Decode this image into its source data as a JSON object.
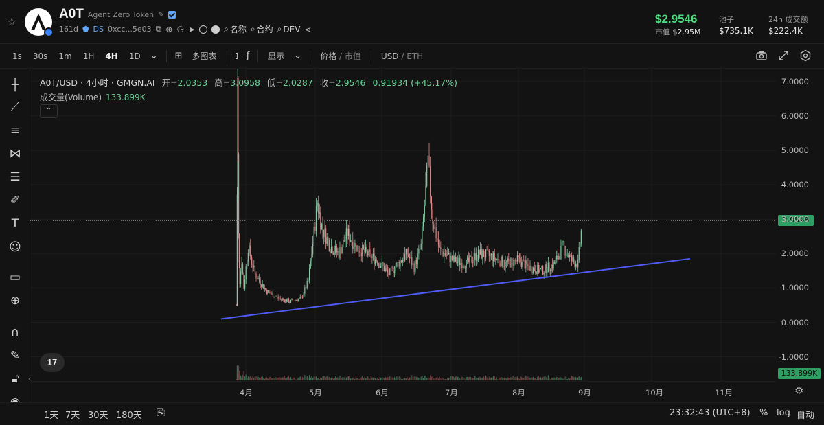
{
  "token": {
    "symbol": "A0T",
    "name": "Agent Zero Token",
    "age": "161d",
    "ds_label": "DS",
    "address": "0xcc...5e03",
    "links": {
      "name_search": "名称",
      "contract_search": "合约",
      "dev_search": "DEV"
    }
  },
  "stats": {
    "price": "$2.9546",
    "market_cap_label": "市值",
    "market_cap": "$2.95M",
    "pool_label": "池子",
    "pool": "$735.1K",
    "vol24_label": "24h 成交额",
    "vol24": "$222.4K"
  },
  "toolbar": {
    "intervals": [
      "1s",
      "30s",
      "1m",
      "1H",
      "4H",
      "1D"
    ],
    "active_interval": "4H",
    "multi_chart": "多图表",
    "display": "显示",
    "price_label": "价格",
    "mcap_label": "市值",
    "usd_label": "USD",
    "eth_label": "ETH"
  },
  "legend": {
    "pair": "A0T/USD · 4小时 · GMGN.AI",
    "open_label": "开=",
    "open": "2.0353",
    "high_label": "高=",
    "high": "3.0958",
    "low_label": "低=",
    "low": "2.0287",
    "close_label": "收=",
    "close": "2.9546",
    "change": "0.91934 (+45.17%)",
    "volume_label": "成交量(Volume)",
    "volume": "133.899K"
  },
  "chart_data": {
    "type": "candlestick",
    "y_ticks": [
      "7.0000",
      "6.0000",
      "5.0000",
      "4.0000",
      "3.0000",
      "2.0000",
      "1.0000",
      "0.0000",
      "-1.0000"
    ],
    "x_ticks": [
      "4月",
      "5月",
      "6月",
      "7月",
      "8月",
      "9月",
      "10月",
      "11月"
    ],
    "price_tag": "2.9546",
    "volume_tag": "133.899K",
    "ylim": [
      -1.5,
      7.2
    ],
    "trendline": {
      "start_value": 0.1,
      "end_value": 1.85
    },
    "price_series": [
      {
        "t": "03-23",
        "v": 0.5
      },
      {
        "t": "03-24",
        "v": 7.0
      },
      {
        "t": "03-25",
        "v": 2.5
      },
      {
        "t": "03-26",
        "v": 1.2
      },
      {
        "t": "03-28",
        "v": 1.8
      },
      {
        "t": "03-30",
        "v": 1.0
      },
      {
        "t": "04-02",
        "v": 2.2
      },
      {
        "t": "04-05",
        "v": 1.4
      },
      {
        "t": "04-10",
        "v": 0.9
      },
      {
        "t": "04-15",
        "v": 0.7
      },
      {
        "t": "04-20",
        "v": 0.6
      },
      {
        "t": "04-25",
        "v": 0.7
      },
      {
        "t": "04-28",
        "v": 1.2
      },
      {
        "t": "04-30",
        "v": 2.3
      },
      {
        "t": "05-02",
        "v": 3.5
      },
      {
        "t": "05-04",
        "v": 2.8
      },
      {
        "t": "05-08",
        "v": 2.2
      },
      {
        "t": "05-12",
        "v": 2.0
      },
      {
        "t": "05-16",
        "v": 2.6
      },
      {
        "t": "05-20",
        "v": 2.2
      },
      {
        "t": "05-25",
        "v": 2.0
      },
      {
        "t": "05-30",
        "v": 1.8
      },
      {
        "t": "06-04",
        "v": 1.4
      },
      {
        "t": "06-08",
        "v": 1.7
      },
      {
        "t": "06-12",
        "v": 2.0
      },
      {
        "t": "06-15",
        "v": 1.6
      },
      {
        "t": "06-18",
        "v": 2.2
      },
      {
        "t": "06-21",
        "v": 4.6
      },
      {
        "t": "06-23",
        "v": 3.0
      },
      {
        "t": "06-26",
        "v": 2.1
      },
      {
        "t": "07-02",
        "v": 1.8
      },
      {
        "t": "07-08",
        "v": 1.7
      },
      {
        "t": "07-14",
        "v": 2.0
      },
      {
        "t": "07-20",
        "v": 1.9
      },
      {
        "t": "07-26",
        "v": 1.7
      },
      {
        "t": "08-01",
        "v": 1.8
      },
      {
        "t": "08-06",
        "v": 1.6
      },
      {
        "t": "08-12",
        "v": 1.5
      },
      {
        "t": "08-18",
        "v": 1.7
      },
      {
        "t": "08-22",
        "v": 2.2
      },
      {
        "t": "08-26",
        "v": 1.8
      },
      {
        "t": "08-29",
        "v": 1.7
      },
      {
        "t": "08-31",
        "v": 2.95
      }
    ]
  },
  "footer": {
    "ranges": [
      "1天",
      "7天",
      "30天",
      "180天"
    ],
    "clock": "23:32:43 (UTC+8)",
    "percent": "%",
    "log": "log",
    "auto": "自动"
  },
  "tv_label": "17"
}
